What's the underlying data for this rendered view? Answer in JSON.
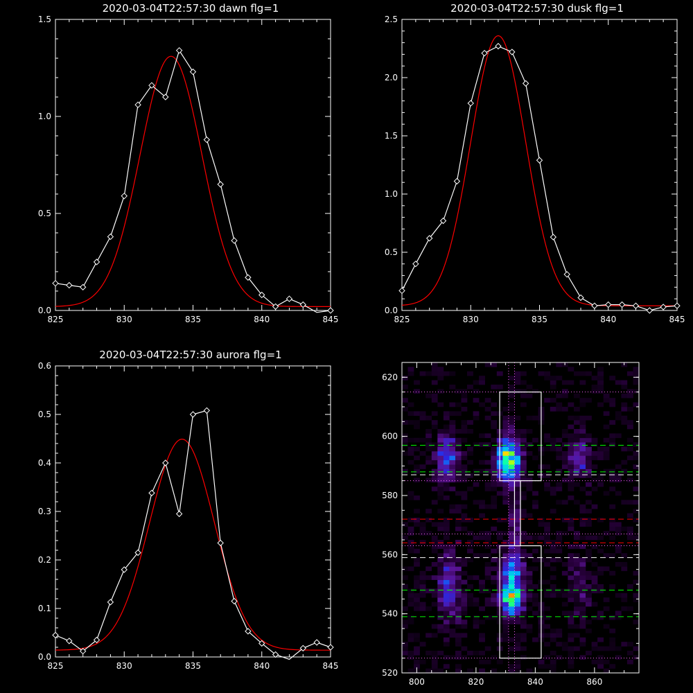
{
  "colors": {
    "background": "#000000",
    "axes": "#ffffff",
    "data_line": "#ffffff",
    "fit_line": "#ff0000",
    "green_dash": "#00ff00",
    "red_dash": "#ff0000",
    "white_dash": "#ffffff",
    "magenta_dot": "#ff66ff"
  },
  "chart_data": [
    {
      "type": "line",
      "title": "2020-03-04T22:57:30 dawn flg=1",
      "xlim": [
        825,
        845
      ],
      "ylim": [
        0,
        1.5
      ],
      "xticks": [
        825,
        830,
        835,
        840,
        845
      ],
      "xtick_labels": [
        "825",
        "830",
        "835",
        "840",
        "845"
      ],
      "yticks": [
        0,
        0.5,
        1.0,
        1.5
      ],
      "ytick_labels": [
        "0.0",
        "0.5",
        "1.0",
        "1.5"
      ],
      "series": [
        {
          "role": "data",
          "marker": "diamond",
          "x": [
            825,
            826,
            827,
            828,
            829,
            830,
            831,
            832,
            833,
            834,
            835,
            836,
            837,
            838,
            839,
            840,
            841,
            842,
            843,
            844,
            845
          ],
          "y": [
            0.14,
            0.13,
            0.12,
            0.25,
            0.38,
            0.59,
            1.06,
            1.16,
            1.1,
            1.34,
            1.23,
            0.88,
            0.65,
            0.36,
            0.17,
            0.08,
            0.02,
            0.06,
            0.03,
            -0.01,
            0.0
          ]
        },
        {
          "role": "fit",
          "model": "gaussian",
          "amplitude": 1.29,
          "center": 833.4,
          "sigma": 2.25,
          "offset": 0.02
        }
      ]
    },
    {
      "type": "line",
      "title": "2020-03-04T22:57:30 dusk flg=1",
      "xlim": [
        825,
        845
      ],
      "ylim": [
        0,
        2.5
      ],
      "xticks": [
        825,
        830,
        835,
        840,
        845
      ],
      "xtick_labels": [
        "825",
        "830",
        "835",
        "840",
        "845"
      ],
      "yticks": [
        0,
        0.5,
        1.0,
        1.5,
        2.0,
        2.5
      ],
      "ytick_labels": [
        "0.0",
        "0.5",
        "1.0",
        "1.5",
        "2.0",
        "2.5"
      ],
      "series": [
        {
          "role": "data",
          "marker": "diamond",
          "x": [
            825,
            826,
            827,
            828,
            829,
            830,
            831,
            832,
            833,
            834,
            835,
            836,
            837,
            838,
            839,
            840,
            841,
            842,
            843,
            844,
            845
          ],
          "y": [
            0.17,
            0.4,
            0.62,
            0.77,
            1.11,
            1.78,
            2.21,
            2.27,
            2.22,
            1.95,
            1.29,
            0.63,
            0.31,
            0.11,
            0.04,
            0.05,
            0.05,
            0.04,
            0.0,
            0.03,
            0.04
          ]
        },
        {
          "role": "fit",
          "model": "gaussian",
          "amplitude": 2.32,
          "center": 832.0,
          "sigma": 2.0,
          "offset": 0.04
        }
      ]
    },
    {
      "type": "line",
      "title": "2020-03-04T22:57:30 aurora flg=1",
      "xlim": [
        825,
        845
      ],
      "ylim": [
        0,
        0.6
      ],
      "xticks": [
        825,
        830,
        835,
        840,
        845
      ],
      "xtick_labels": [
        "825",
        "830",
        "835",
        "840",
        "845"
      ],
      "yticks": [
        0,
        0.1,
        0.2,
        0.3,
        0.4,
        0.5,
        0.6
      ],
      "ytick_labels": [
        "0.0",
        "0.1",
        "0.2",
        "0.3",
        "0.4",
        "0.5",
        "0.6"
      ],
      "series": [
        {
          "role": "data",
          "marker": "diamond",
          "x": [
            825,
            826,
            827,
            828,
            829,
            830,
            831,
            832,
            833,
            834,
            835,
            836,
            837,
            838,
            839,
            840,
            841,
            842,
            843,
            844,
            845
          ],
          "y": [
            0.045,
            0.033,
            0.012,
            0.035,
            0.113,
            0.18,
            0.215,
            0.338,
            0.4,
            0.295,
            0.5,
            0.508,
            0.235,
            0.115,
            0.053,
            0.028,
            0.005,
            -0.005,
            0.018,
            0.03,
            0.02
          ]
        },
        {
          "role": "fit",
          "model": "gaussian",
          "amplitude": 0.435,
          "center": 834.2,
          "sigma": 2.35,
          "offset": 0.014
        }
      ]
    },
    {
      "type": "heatmap",
      "xlim": [
        795,
        875
      ],
      "ylim": [
        520,
        625
      ],
      "xticks": [
        800,
        820,
        840,
        860
      ],
      "xtick_labels": [
        "800",
        "820",
        "840",
        "860"
      ],
      "yticks": [
        520,
        540,
        560,
        580,
        600,
        620
      ],
      "ytick_labels": [
        "520",
        "540",
        "560",
        "580",
        "600",
        "620"
      ],
      "blobs": [
        {
          "x": 810,
          "y": 593,
          "sx": 2.6,
          "sy": 5.0,
          "amp": 0.38
        },
        {
          "x": 831,
          "y": 592,
          "sx": 2.8,
          "sy": 5.0,
          "amp": 0.75
        },
        {
          "x": 832,
          "y": 545,
          "sx": 2.6,
          "sy": 3.5,
          "amp": 0.7
        },
        {
          "x": 832,
          "y": 554,
          "sx": 2.8,
          "sy": 4.5,
          "amp": 0.42
        },
        {
          "x": 833,
          "y": 571,
          "sx": 1.3,
          "sy": 7.0,
          "amp": 0.22
        },
        {
          "x": 811,
          "y": 549,
          "sx": 2.6,
          "sy": 8.0,
          "amp": 0.3
        },
        {
          "x": 855,
          "y": 593,
          "sx": 2.6,
          "sy": 5.0,
          "amp": 0.25
        },
        {
          "x": 855,
          "y": 550,
          "sx": 2.6,
          "sy": 8.0,
          "amp": 0.14
        }
      ],
      "boxes": [
        {
          "x0": 828,
          "x1": 842,
          "y0": 585,
          "y1": 615
        },
        {
          "x0": 828,
          "x1": 842,
          "y0": 525,
          "y1": 563
        },
        {
          "x0": 833,
          "x1": 835,
          "y0": 563,
          "y1": 585
        }
      ],
      "hlines": [
        {
          "y": 615,
          "color": "magenta_dot",
          "style": "dot"
        },
        {
          "y": 585,
          "color": "magenta_dot",
          "style": "dot"
        },
        {
          "y": 567,
          "color": "magenta_dot",
          "style": "dot"
        },
        {
          "y": 563,
          "color": "magenta_dot",
          "style": "dot"
        },
        {
          "y": 525,
          "color": "magenta_dot",
          "style": "dot"
        },
        {
          "y": 597,
          "color": "green_dash",
          "style": "dash"
        },
        {
          "y": 588,
          "color": "green_dash",
          "style": "dash"
        },
        {
          "y": 548,
          "color": "green_dash",
          "style": "dash"
        },
        {
          "y": 539,
          "color": "green_dash",
          "style": "dash"
        },
        {
          "y": 587,
          "color": "white_dash",
          "style": "dash"
        },
        {
          "y": 559,
          "color": "white_dash",
          "style": "dash"
        },
        {
          "y": 572,
          "color": "red_dash",
          "style": "dash"
        },
        {
          "y": 564,
          "color": "red_dash",
          "style": "dash"
        }
      ],
      "vlines": [
        {
          "x": 831,
          "color": "magenta_dot",
          "style": "dot"
        },
        {
          "x": 833,
          "color": "magenta_dot",
          "style": "dot"
        }
      ]
    }
  ]
}
